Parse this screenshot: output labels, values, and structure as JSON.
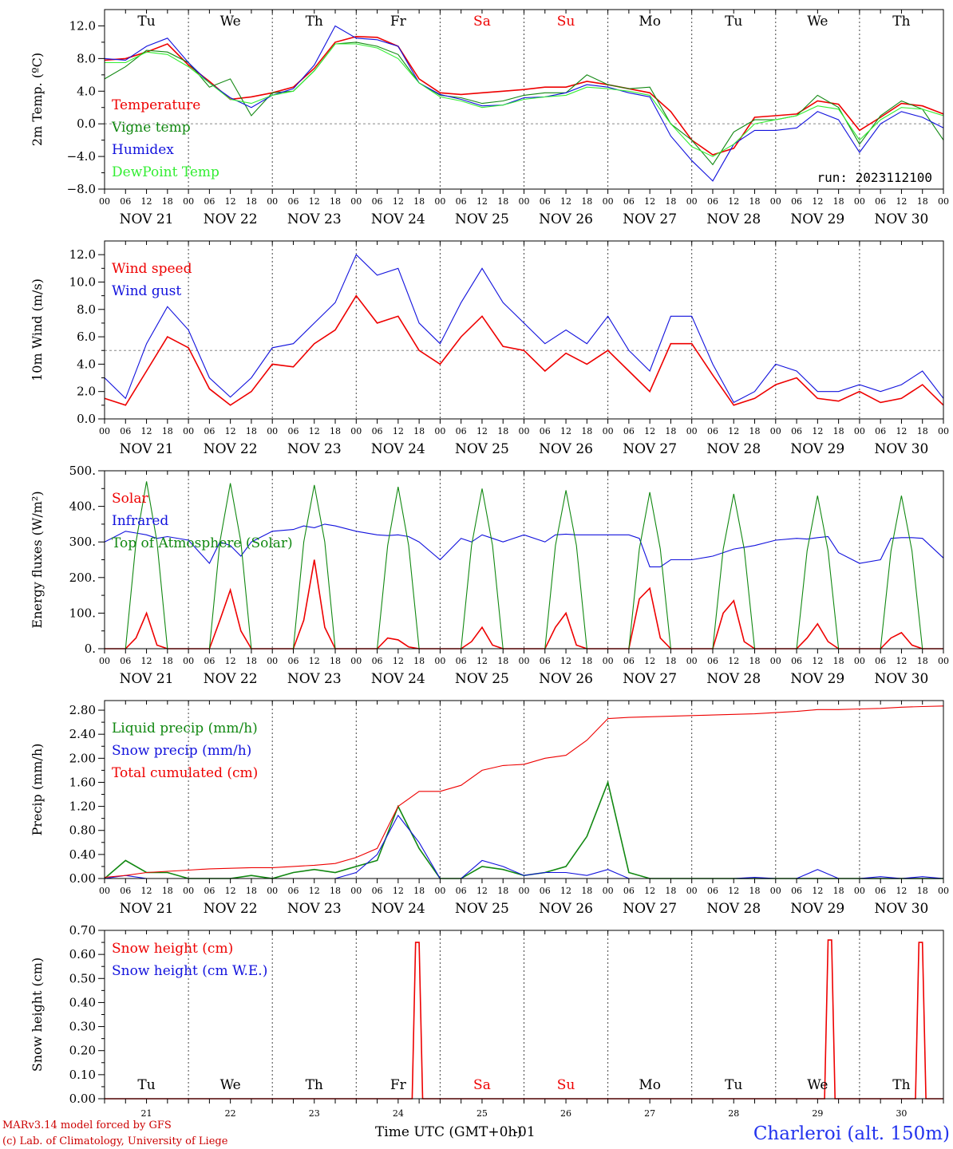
{
  "colors": {
    "red": "#ee0000",
    "green": "#118811",
    "blue": "#1111dd",
    "lightgreen": "#33ee33",
    "purple": "#880088",
    "grid": "#777777"
  },
  "days": {
    "names": [
      "Tu",
      "We",
      "Th",
      "Fr",
      "Sa",
      "Su",
      "Mo",
      "Tu",
      "We",
      "Th"
    ],
    "weekend": [
      false,
      false,
      false,
      false,
      true,
      true,
      false,
      false,
      false,
      false
    ],
    "dates": [
      "NOV 21",
      "NOV 22",
      "NOV 23",
      "NOV 24",
      "NOV 25",
      "NOV 26",
      "NOV 27",
      "NOV 28",
      "NOV 29",
      "NOV 30"
    ],
    "numbers": [
      "21",
      "22",
      "23",
      "24",
      "25",
      "26",
      "27",
      "28",
      "29",
      "30"
    ],
    "hour_ticks": [
      "00",
      "06",
      "12",
      "18"
    ],
    "final_hour": "00"
  },
  "run_label": "run: 2023112100",
  "footer": {
    "model_line1": "MARv3.14 model forced by GFS",
    "model_line2": "(c) Lab. of Climatology, University of Liege",
    "xlabel_main": "Time UTC (GMT+0h)",
    "xlabel_overlay": "-01",
    "location": "Charleroi (alt. 150m)"
  },
  "chart_data": [
    {
      "type": "line",
      "ylabel": "2m Temp. (ºC)",
      "ylim": [
        -8,
        14
      ],
      "yticks": [
        "12.0",
        "8.0",
        "4.0",
        "0.0",
        "−4.0",
        "−8.0"
      ],
      "ytick_values": [
        12,
        8,
        4,
        0,
        -4,
        -8
      ],
      "ref_line": 0,
      "x_hours": [
        0,
        6,
        12,
        18,
        24,
        30,
        36,
        42,
        48,
        54,
        60,
        66,
        72,
        78,
        84,
        90,
        96,
        102,
        108,
        114,
        120,
        126,
        132,
        138,
        144,
        150,
        156,
        162,
        168,
        174,
        180,
        186,
        192,
        198,
        204,
        210,
        216,
        222,
        228,
        234,
        240
      ],
      "series": [
        {
          "name": "Temperature",
          "color": "red",
          "values": [
            7.8,
            8.0,
            8.8,
            9.8,
            7.2,
            5.2,
            3.0,
            3.3,
            3.8,
            4.5,
            6.8,
            10.0,
            10.7,
            10.6,
            9.5,
            5.5,
            3.8,
            3.6,
            3.8,
            4.0,
            4.2,
            4.5,
            4.5,
            5.2,
            4.8,
            4.3,
            3.8,
            1.5,
            -2.0,
            -3.8,
            -3.0,
            0.8,
            1.0,
            1.2,
            2.8,
            2.4,
            -0.8,
            0.8,
            2.5,
            2.2,
            1.2
          ]
        },
        {
          "name": "Vigne temp",
          "color": "green",
          "values": [
            5.5,
            7.0,
            9.0,
            8.8,
            7.5,
            4.5,
            5.5,
            1.0,
            3.8,
            4.0,
            6.5,
            9.8,
            10.0,
            9.5,
            8.5,
            5.0,
            3.5,
            3.2,
            2.5,
            2.8,
            3.5,
            3.8,
            3.8,
            6.0,
            4.8,
            4.3,
            4.5,
            0.0,
            -2.0,
            -5.0,
            -1.0,
            0.5,
            0.5,
            1.0,
            3.5,
            2.0,
            -2.5,
            1.0,
            2.8,
            1.8,
            -2.0
          ]
        },
        {
          "name": "Humidex",
          "color": "blue",
          "values": [
            8.0,
            7.8,
            9.5,
            10.5,
            7.5,
            5.0,
            3.2,
            2.0,
            3.5,
            4.3,
            7.2,
            12.0,
            10.5,
            10.3,
            9.5,
            5.0,
            3.6,
            3.0,
            2.2,
            2.3,
            3.2,
            3.3,
            3.8,
            4.8,
            4.5,
            3.8,
            3.3,
            -1.5,
            -4.5,
            -7.0,
            -2.5,
            -0.8,
            -0.8,
            -0.5,
            1.5,
            0.5,
            -3.5,
            0.0,
            1.5,
            0.8,
            -0.5
          ]
        },
        {
          "name": "DewPoint Temp",
          "color": "lightgreen",
          "values": [
            7.5,
            7.5,
            8.8,
            8.5,
            7.0,
            5.0,
            3.0,
            2.5,
            3.5,
            4.0,
            6.5,
            9.8,
            9.8,
            9.3,
            8.0,
            5.0,
            3.3,
            2.8,
            2.0,
            2.3,
            3.0,
            3.3,
            3.5,
            4.5,
            4.3,
            4.0,
            3.5,
            0.0,
            -2.8,
            -4.0,
            -2.5,
            0.0,
            0.5,
            1.0,
            2.2,
            1.8,
            -2.0,
            0.5,
            2.0,
            1.8,
            1.0
          ]
        }
      ]
    },
    {
      "type": "line",
      "ylabel": "10m Wind (m/s)",
      "ylim": [
        0,
        13
      ],
      "yticks": [
        "12.0",
        "10.0",
        "8.0",
        "6.0",
        "4.0",
        "2.0",
        "0.0"
      ],
      "ytick_values": [
        12,
        10,
        8,
        6,
        4,
        2,
        0
      ],
      "ref_line": 5,
      "x_hours": [
        0,
        6,
        12,
        18,
        24,
        30,
        36,
        42,
        48,
        54,
        60,
        66,
        72,
        78,
        84,
        90,
        96,
        102,
        108,
        114,
        120,
        126,
        132,
        138,
        144,
        150,
        156,
        162,
        168,
        174,
        180,
        186,
        192,
        198,
        204,
        210,
        216,
        222,
        228,
        234,
        240
      ],
      "series": [
        {
          "name": "Wind speed",
          "color": "red",
          "values": [
            1.5,
            1.0,
            3.5,
            6.0,
            5.2,
            2.2,
            1.0,
            2.0,
            4.0,
            3.8,
            5.5,
            6.5,
            9.0,
            7.0,
            7.5,
            5.0,
            4.0,
            6.0,
            7.5,
            5.3,
            5.0,
            3.5,
            4.8,
            4.0,
            5.0,
            3.5,
            2.0,
            5.5,
            5.5,
            3.2,
            1.0,
            1.5,
            2.5,
            3.0,
            1.5,
            1.3,
            2.0,
            1.2,
            1.5,
            2.5,
            1.0
          ]
        },
        {
          "name": "Wind gust",
          "color": "blue",
          "values": [
            3.0,
            1.5,
            5.5,
            8.2,
            6.5,
            3.0,
            1.6,
            3.0,
            5.2,
            5.5,
            7.0,
            8.5,
            12.0,
            10.5,
            11.0,
            7.0,
            5.5,
            8.5,
            11.0,
            8.5,
            7.0,
            5.5,
            6.5,
            5.5,
            7.5,
            5.0,
            3.5,
            7.5,
            7.5,
            4.0,
            1.2,
            2.0,
            4.0,
            3.5,
            2.0,
            2.0,
            2.5,
            2.0,
            2.5,
            3.5,
            1.5
          ]
        }
      ]
    },
    {
      "type": "line",
      "ylabel": "Energy fluxes (W/m²)",
      "ylim": [
        0,
        500
      ],
      "yticks": [
        "500.",
        "400.",
        "300.",
        "200.",
        "100.",
        "0."
      ],
      "ytick_values": [
        500,
        400,
        300,
        200,
        100,
        0
      ],
      "ref_line": null,
      "x_hours": [
        0,
        6,
        9,
        12,
        15,
        18,
        24,
        30,
        33,
        36,
        39,
        42,
        48,
        54,
        57,
        60,
        63,
        66,
        72,
        78,
        81,
        84,
        87,
        90,
        96,
        102,
        105,
        108,
        111,
        114,
        120,
        126,
        129,
        132,
        135,
        138,
        144,
        150,
        153,
        156,
        159,
        162,
        168,
        174,
        177,
        180,
        183,
        186,
        192,
        198,
        201,
        204,
        207,
        210,
        216,
        222,
        225,
        228,
        231,
        234,
        240
      ],
      "series": [
        {
          "name": "Solar",
          "color": "red",
          "values": [
            0,
            0,
            30,
            100,
            10,
            0,
            0,
            0,
            80,
            165,
            50,
            0,
            0,
            0,
            80,
            250,
            60,
            0,
            0,
            0,
            30,
            25,
            5,
            0,
            0,
            0,
            20,
            60,
            10,
            0,
            0,
            0,
            60,
            100,
            10,
            0,
            0,
            0,
            140,
            170,
            30,
            0,
            0,
            0,
            100,
            135,
            20,
            0,
            0,
            0,
            30,
            70,
            20,
            0,
            0,
            0,
            30,
            45,
            10,
            0,
            0
          ]
        },
        {
          "name": "Infrared",
          "color": "blue",
          "values": [
            300,
            330,
            325,
            320,
            310,
            315,
            305,
            240,
            300,
            290,
            260,
            300,
            330,
            335,
            345,
            340,
            350,
            345,
            330,
            320,
            318,
            320,
            315,
            300,
            250,
            310,
            300,
            320,
            310,
            300,
            320,
            300,
            320,
            322,
            320,
            320,
            320,
            320,
            310,
            230,
            230,
            250,
            250,
            260,
            270,
            280,
            285,
            290,
            305,
            310,
            308,
            312,
            315,
            270,
            240,
            250,
            310,
            312,
            312,
            310,
            255
          ]
        },
        {
          "name": "Top of Atmosphere (Solar)",
          "color": "green",
          "values": [
            0,
            0,
            300,
            470,
            300,
            0,
            0,
            0,
            300,
            465,
            300,
            0,
            0,
            0,
            300,
            460,
            300,
            0,
            0,
            0,
            290,
            455,
            290,
            0,
            0,
            0,
            290,
            450,
            290,
            0,
            0,
            0,
            290,
            445,
            290,
            0,
            0,
            0,
            280,
            440,
            280,
            0,
            0,
            0,
            280,
            435,
            280,
            0,
            0,
            0,
            275,
            430,
            275,
            0,
            0,
            0,
            275,
            430,
            275,
            0,
            0
          ]
        }
      ]
    },
    {
      "type": "line",
      "ylabel": "Precip (mm/h)",
      "ylim": [
        0,
        2.96
      ],
      "yticks": [
        "2.80",
        "2.40",
        "2.00",
        "1.60",
        "1.20",
        "0.80",
        "0.40",
        "0.00"
      ],
      "ytick_values": [
        2.8,
        2.4,
        2.0,
        1.6,
        1.2,
        0.8,
        0.4,
        0.0
      ],
      "ref_line": null,
      "x_hours": [
        0,
        6,
        12,
        18,
        24,
        30,
        36,
        42,
        48,
        54,
        60,
        66,
        72,
        78,
        84,
        90,
        96,
        102,
        108,
        114,
        120,
        126,
        132,
        138,
        144,
        150,
        156,
        162,
        168,
        174,
        180,
        186,
        192,
        198,
        204,
        210,
        216,
        222,
        228,
        234,
        240
      ],
      "series": [
        {
          "name": "Liquid precip (mm/h)",
          "color": "green",
          "values": [
            0.0,
            0.3,
            0.1,
            0.1,
            0.0,
            0.0,
            0.0,
            0.05,
            0.0,
            0.1,
            0.15,
            0.1,
            0.2,
            0.3,
            1.2,
            0.5,
            0.0,
            0.0,
            0.2,
            0.15,
            0.05,
            0.1,
            0.2,
            0.7,
            1.6,
            0.1,
            0.0,
            0.0,
            0.0,
            0.0,
            0.0,
            0.0,
            0.0,
            0.0,
            0.0,
            0.0,
            0.0,
            0.0,
            0.0,
            0.0,
            0.0
          ]
        },
        {
          "name": "Snow precip (mm/h)",
          "color": "blue",
          "values": [
            0.0,
            0.05,
            0.0,
            0.0,
            0.0,
            0.0,
            0.0,
            0.0,
            0.0,
            0.0,
            0.0,
            0.0,
            0.1,
            0.4,
            1.05,
            0.6,
            0.0,
            0.0,
            0.3,
            0.2,
            0.05,
            0.1,
            0.1,
            0.05,
            0.15,
            0.0,
            0.0,
            0.0,
            0.0,
            0.0,
            0.0,
            0.02,
            0.0,
            0.0,
            0.15,
            0.0,
            0.0,
            0.03,
            0.0,
            0.03,
            0.0
          ]
        },
        {
          "name": "Total cumulated (cm)",
          "color": "red",
          "values": [
            0.02,
            0.05,
            0.1,
            0.12,
            0.14,
            0.16,
            0.17,
            0.18,
            0.18,
            0.2,
            0.22,
            0.25,
            0.35,
            0.5,
            1.2,
            1.45,
            1.45,
            1.55,
            1.8,
            1.88,
            1.9,
            2.0,
            2.05,
            2.3,
            2.66,
            2.68,
            2.69,
            2.7,
            2.71,
            2.72,
            2.73,
            2.74,
            2.76,
            2.78,
            2.81,
            2.81,
            2.82,
            2.83,
            2.85,
            2.86,
            2.87
          ]
        }
      ]
    },
    {
      "type": "line",
      "ylabel": "Snow height (cm)",
      "ylim": [
        0,
        0.7
      ],
      "yticks": [
        "0.70",
        "0.60",
        "0.50",
        "0.40",
        "0.30",
        "0.20",
        "0.10",
        "0.00"
      ],
      "ytick_values": [
        0.7,
        0.6,
        0.5,
        0.4,
        0.3,
        0.2,
        0.1,
        0.0
      ],
      "ref_line": null,
      "x_hours": [
        0,
        88,
        89,
        90,
        91,
        206,
        207,
        208,
        209,
        232,
        233,
        234,
        235,
        240
      ],
      "series": [
        {
          "name": "Snow height (cm)",
          "color": "red",
          "values": [
            0,
            0,
            0.65,
            0.65,
            0,
            0,
            0.66,
            0.66,
            0,
            0,
            0.65,
            0.65,
            0,
            0
          ]
        },
        {
          "name": "Snow height (cm W.E.)",
          "color": "blue",
          "values": [
            0,
            0,
            0,
            0,
            0,
            0,
            0,
            0,
            0,
            0,
            0,
            0,
            0,
            0
          ]
        }
      ]
    }
  ]
}
